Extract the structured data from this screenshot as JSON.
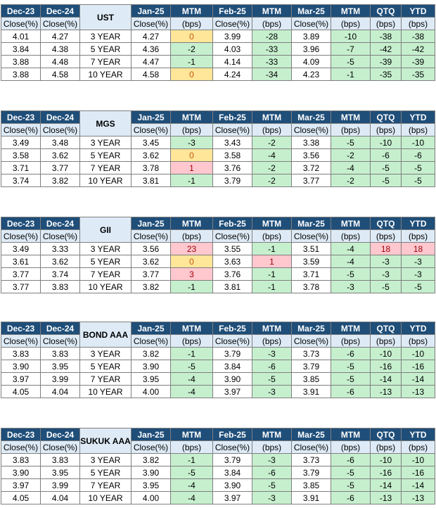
{
  "headers": {
    "dec23": "Dec-23",
    "dec24": "Dec-24",
    "jan25": "Jan-25",
    "mtm": "MTM",
    "feb25": "Feb-25",
    "mar25": "Mar-25",
    "qtq": "QTQ",
    "ytd": "YTD",
    "close": "Close(%)",
    "bps": "(bps)"
  },
  "tables": [
    {
      "label": "UST",
      "rows": [
        {
          "dec23": "4.01",
          "dec24": "4.27",
          "tenor": "3 YEAR",
          "jan25": "4.27",
          "mtm1": "0",
          "feb25": "3.99",
          "mtm2": "-28",
          "mar25": "3.89",
          "mtm3": "-10",
          "qtq": "-38",
          "ytd": "-38"
        },
        {
          "dec23": "3.84",
          "dec24": "4.38",
          "tenor": "5 YEAR",
          "jan25": "4.36",
          "mtm1": "-2",
          "feb25": "4.03",
          "mtm2": "-33",
          "mar25": "3.96",
          "mtm3": "-7",
          "qtq": "-42",
          "ytd": "-42"
        },
        {
          "dec23": "3.88",
          "dec24": "4.48",
          "tenor": "7 YEAR",
          "jan25": "4.47",
          "mtm1": "-1",
          "feb25": "4.14",
          "mtm2": "-33",
          "mar25": "4.09",
          "mtm3": "-5",
          "qtq": "-39",
          "ytd": "-39"
        },
        {
          "dec23": "3.88",
          "dec24": "4.58",
          "tenor": "10 YEAR",
          "jan25": "4.58",
          "mtm1": "0",
          "feb25": "4.24",
          "mtm2": "-34",
          "mar25": "4.23",
          "mtm3": "-1",
          "qtq": "-35",
          "ytd": "-35"
        }
      ]
    },
    {
      "label": "MGS",
      "rows": [
        {
          "dec23": "3.49",
          "dec24": "3.48",
          "tenor": "3 YEAR",
          "jan25": "3.45",
          "mtm1": "-3",
          "feb25": "3.43",
          "mtm2": "-2",
          "mar25": "3.38",
          "mtm3": "-5",
          "qtq": "-10",
          "ytd": "-10"
        },
        {
          "dec23": "3.58",
          "dec24": "3.62",
          "tenor": "5 YEAR",
          "jan25": "3.62",
          "mtm1": "0",
          "feb25": "3.58",
          "mtm2": "-4",
          "mar25": "3.56",
          "mtm3": "-2",
          "qtq": "-6",
          "ytd": "-6"
        },
        {
          "dec23": "3.71",
          "dec24": "3.77",
          "tenor": "7 YEAR",
          "jan25": "3.78",
          "mtm1": "1",
          "feb25": "3.76",
          "mtm2": "-2",
          "mar25": "3.72",
          "mtm3": "-4",
          "qtq": "-5",
          "ytd": "-5"
        },
        {
          "dec23": "3.74",
          "dec24": "3.82",
          "tenor": "10 YEAR",
          "jan25": "3.81",
          "mtm1": "-1",
          "feb25": "3.79",
          "mtm2": "-2",
          "mar25": "3.77",
          "mtm3": "-2",
          "qtq": "-5",
          "ytd": "-5"
        }
      ]
    },
    {
      "label": "GII",
      "rows": [
        {
          "dec23": "3.49",
          "dec24": "3.33",
          "tenor": "3 YEAR",
          "jan25": "3.56",
          "mtm1": "23",
          "feb25": "3.55",
          "mtm2": "-1",
          "mar25": "3.51",
          "mtm3": "-4",
          "qtq": "18",
          "ytd": "18"
        },
        {
          "dec23": "3.61",
          "dec24": "3.62",
          "tenor": "5 YEAR",
          "jan25": "3.62",
          "mtm1": "0",
          "feb25": "3.63",
          "mtm2": "1",
          "mar25": "3.59",
          "mtm3": "-4",
          "qtq": "-3",
          "ytd": "-3"
        },
        {
          "dec23": "3.77",
          "dec24": "3.74",
          "tenor": "7 YEAR",
          "jan25": "3.77",
          "mtm1": "3",
          "feb25": "3.76",
          "mtm2": "-1",
          "mar25": "3.71",
          "mtm3": "-5",
          "qtq": "-3",
          "ytd": "-3"
        },
        {
          "dec23": "3.77",
          "dec24": "3.83",
          "tenor": "10 YEAR",
          "jan25": "3.82",
          "mtm1": "-1",
          "feb25": "3.81",
          "mtm2": "-1",
          "mar25": "3.78",
          "mtm3": "-3",
          "qtq": "-5",
          "ytd": "-5"
        }
      ]
    },
    {
      "label": "BOND AAA",
      "rows": [
        {
          "dec23": "3.83",
          "dec24": "3.83",
          "tenor": "3 YEAR",
          "jan25": "3.82",
          "mtm1": "-1",
          "feb25": "3.79",
          "mtm2": "-3",
          "mar25": "3.73",
          "mtm3": "-6",
          "qtq": "-10",
          "ytd": "-10"
        },
        {
          "dec23": "3.90",
          "dec24": "3.95",
          "tenor": "5 YEAR",
          "jan25": "3.90",
          "mtm1": "-5",
          "feb25": "3.84",
          "mtm2": "-6",
          "mar25": "3.79",
          "mtm3": "-5",
          "qtq": "-16",
          "ytd": "-16"
        },
        {
          "dec23": "3.97",
          "dec24": "3.99",
          "tenor": "7 YEAR",
          "jan25": "3.95",
          "mtm1": "-4",
          "feb25": "3.90",
          "mtm2": "-5",
          "mar25": "3.85",
          "mtm3": "-5",
          "qtq": "-14",
          "ytd": "-14"
        },
        {
          "dec23": "4.05",
          "dec24": "4.04",
          "tenor": "10 YEAR",
          "jan25": "4.00",
          "mtm1": "-4",
          "feb25": "3.97",
          "mtm2": "-3",
          "mar25": "3.91",
          "mtm3": "-6",
          "qtq": "-13",
          "ytd": "-13"
        }
      ]
    },
    {
      "label": "SUKUK AAA",
      "rows": [
        {
          "dec23": "3.83",
          "dec24": "3.83",
          "tenor": "3 YEAR",
          "jan25": "3.82",
          "mtm1": "-1",
          "feb25": "3.79",
          "mtm2": "-3",
          "mar25": "3.73",
          "mtm3": "-6",
          "qtq": "-10",
          "ytd": "-10"
        },
        {
          "dec23": "3.90",
          "dec24": "3.95",
          "tenor": "5 YEAR",
          "jan25": "3.90",
          "mtm1": "-5",
          "feb25": "3.84",
          "mtm2": "-6",
          "mar25": "3.79",
          "mtm3": "-5",
          "qtq": "-16",
          "ytd": "-16"
        },
        {
          "dec23": "3.97",
          "dec24": "3.99",
          "tenor": "7 YEAR",
          "jan25": "3.95",
          "mtm1": "-4",
          "feb25": "3.90",
          "mtm2": "-5",
          "mar25": "3.85",
          "mtm3": "-5",
          "qtq": "-14",
          "ytd": "-14"
        },
        {
          "dec23": "4.05",
          "dec24": "4.04",
          "tenor": "10 YEAR",
          "jan25": "4.00",
          "mtm1": "-4",
          "feb25": "3.97",
          "mtm2": "-3",
          "mar25": "3.91",
          "mtm3": "-6",
          "qtq": "-13",
          "ytd": "-13"
        }
      ]
    }
  ],
  "colors": {
    "header_bg": "#1f4e79",
    "subheader_bg": "#deebf7",
    "negative_bg": "#c6efce",
    "zero_bg": "#ffe699",
    "positive_bg": "#ffc7ce"
  }
}
